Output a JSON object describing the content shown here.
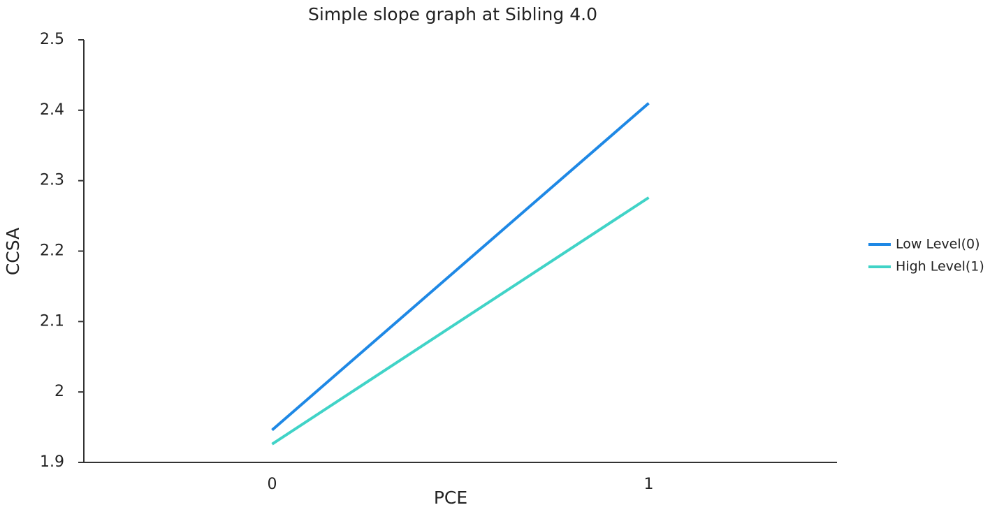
{
  "chart_data": {
    "type": "line",
    "title": "Simple slope graph at Sibling 4.0",
    "x_label": "PCE",
    "y_label": "CCSA",
    "categories": [
      "0",
      "1"
    ],
    "series": [
      {
        "name": "Low Level(0)",
        "color": "#1e88e5",
        "values": [
          1.946,
          2.41
        ]
      },
      {
        "name": "High Level(1)",
        "color": "#40d3c7",
        "values": [
          1.926,
          2.276
        ]
      }
    ],
    "ylim": [
      1.9,
      2.5
    ],
    "yticks": [
      1.9,
      2,
      2.1,
      2.2,
      2.3,
      2.4,
      2.5
    ],
    "grid": false,
    "legend": "right"
  }
}
